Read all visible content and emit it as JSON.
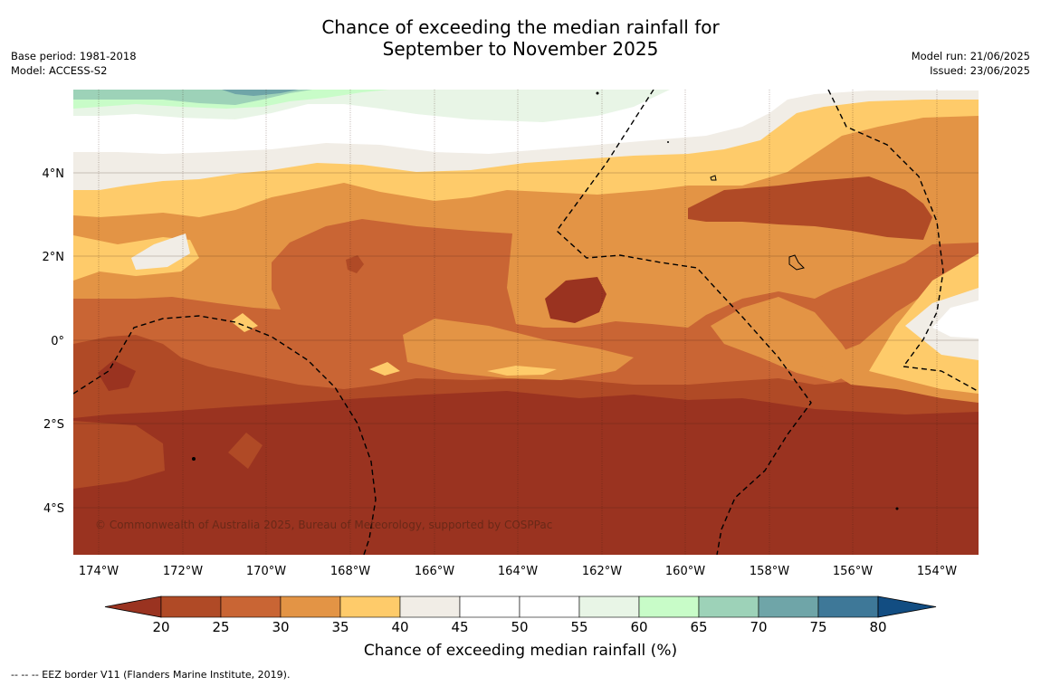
{
  "header": {
    "title_line1": "Chance of exceeding the median rainfall for",
    "title_line2": "September to November 2025",
    "base_period": "Base period: 1981-2018",
    "model": "Model: ACCESS-S2",
    "model_run": "Model run: 21/06/2025",
    "issued": "Issued: 23/06/2025"
  },
  "map": {
    "copyright": "© Commonwealth of Australia 2025, Bureau of Meteorology, supported by COSPPac",
    "lon_labels": [
      "174°W",
      "172°W",
      "170°W",
      "168°W",
      "166°W",
      "164°W",
      "162°W",
      "160°W",
      "158°W",
      "156°W",
      "154°W"
    ],
    "lat_labels": [
      "4°N",
      "2°N",
      "0°",
      "2°S",
      "4°S"
    ]
  },
  "colorbar": {
    "label": "Chance of exceeding median rainfall (%)",
    "ticks": [
      "20",
      "25",
      "30",
      "35",
      "40",
      "45",
      "50",
      "55",
      "60",
      "65",
      "70",
      "75",
      "80"
    ],
    "colors": [
      "#9a3320",
      "#b04a26",
      "#c96534",
      "#e39445",
      "#fecb6a",
      "#f1ede6",
      "#ffffff",
      "#ffffff",
      "#e8f5e6",
      "#c8fcc8",
      "#9dd2b8",
      "#6fa5a8",
      "#3e7898",
      "#124d82"
    ]
  },
  "footer": {
    "eez_note": "--  --  -- EEZ border V11 (Flanders Marine Institute, 2019)."
  }
}
